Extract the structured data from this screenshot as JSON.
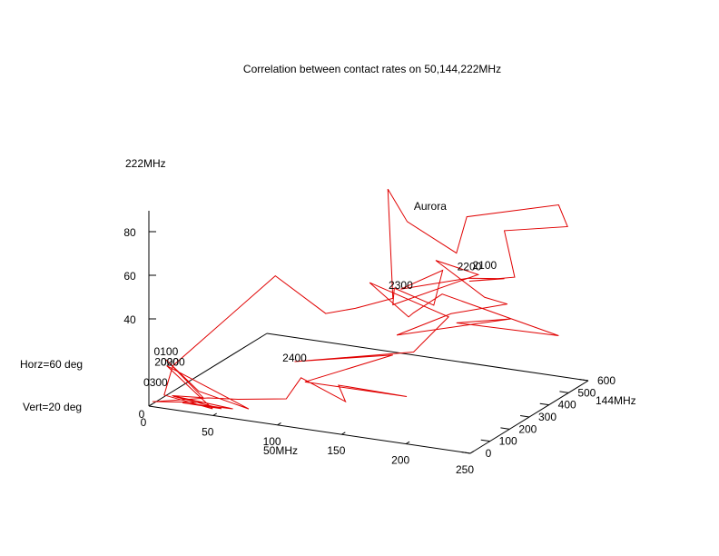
{
  "chart_data": {
    "type": "line",
    "title": "Correlation between contact rates on 50,144,222MHz",
    "xlabel": "50MHz",
    "ylabel": "144MHz",
    "zlabel": "222MHz",
    "xlim": [
      0,
      250
    ],
    "ylim": [
      0,
      600
    ],
    "zlim": [
      0,
      90
    ],
    "x_ticks": [
      "0",
      "50",
      "100",
      "150",
      "200",
      "250"
    ],
    "y_ticks": [
      "0",
      "100",
      "200",
      "300",
      "400",
      "500",
      "600"
    ],
    "z_ticks": [
      "40",
      "60",
      "80"
    ],
    "view": {
      "horizontal": "Horz=60 deg",
      "vertical": "Vert=20 deg"
    },
    "series_color": "#e00000",
    "annotations": [
      {
        "text": "Aurora",
        "x": 150,
        "y": 450,
        "z": 78
      },
      {
        "text": "2100",
        "x": 200,
        "y": 400,
        "z": 58
      },
      {
        "text": "2200",
        "x": 185,
        "y": 420,
        "z": 55
      },
      {
        "text": "2300",
        "x": 150,
        "y": 300,
        "z": 50
      },
      {
        "text": "2400",
        "x": 95,
        "y": 120,
        "z": 22
      },
      {
        "text": "0100",
        "x": 8,
        "y": 35,
        "z": 22
      },
      {
        "text": "2000",
        "x": 10,
        "y": 25,
        "z": 18
      },
      {
        "text": "0200",
        "x": 14,
        "y": 30,
        "z": 18
      },
      {
        "text": "0300",
        "x": 4,
        "y": 8,
        "z": 9
      }
    ],
    "series": [
      {
        "points": [
          [
            2,
            5,
            2
          ],
          [
            40,
            20,
            4
          ],
          [
            10,
            60,
            2
          ],
          [
            55,
            10,
            3
          ],
          [
            20,
            40,
            1
          ],
          [
            60,
            35,
            2
          ],
          [
            15,
            20,
            5
          ],
          [
            30,
            80,
            2
          ],
          [
            8,
            35,
            20
          ],
          [
            25,
            90,
            4
          ],
          [
            70,
            50,
            2
          ],
          [
            10,
            25,
            18
          ],
          [
            45,
            30,
            1
          ],
          [
            5,
            45,
            3
          ],
          [
            14,
            30,
            18
          ],
          [
            80,
            120,
            60
          ],
          [
            110,
            180,
            42
          ],
          [
            130,
            200,
            45
          ],
          [
            150,
            260,
            48
          ],
          [
            140,
            300,
            95
          ],
          [
            152,
            320,
            80
          ],
          [
            175,
            420,
            62
          ],
          [
            180,
            440,
            78
          ],
          [
            230,
            580,
            80
          ],
          [
            240,
            560,
            72
          ],
          [
            200,
            500,
            70
          ],
          [
            205,
            520,
            48
          ],
          [
            185,
            420,
            50
          ],
          [
            200,
            500,
            48
          ],
          [
            190,
            380,
            54
          ],
          [
            150,
            300,
            50
          ],
          [
            175,
            350,
            58
          ],
          [
            165,
            370,
            40
          ],
          [
            145,
            300,
            50
          ],
          [
            150,
            260,
            45
          ],
          [
            195,
            400,
            55
          ],
          [
            165,
            380,
            60
          ],
          [
            200,
            400,
            45
          ],
          [
            210,
            450,
            40
          ],
          [
            180,
            360,
            38
          ],
          [
            150,
            280,
            30
          ],
          [
            205,
            500,
            30
          ],
          [
            175,
            420,
            30
          ],
          [
            230,
            580,
            20
          ],
          [
            170,
            380,
            45
          ],
          [
            160,
            300,
            40
          ],
          [
            150,
            340,
            35
          ],
          [
            135,
            240,
            55
          ],
          [
            175,
            380,
            35
          ],
          [
            160,
            300,
            22
          ],
          [
            95,
            120,
            22
          ],
          [
            150,
            260,
            22
          ],
          [
            100,
            140,
            12
          ],
          [
            170,
            200,
            8
          ],
          [
            120,
            180,
            10
          ],
          [
            130,
            150,
            5
          ],
          [
            100,
            120,
            15
          ],
          [
            90,
            110,
            5
          ],
          [
            60,
            60,
            5
          ],
          [
            40,
            40,
            5
          ],
          [
            5,
            10,
            2
          ]
        ]
      }
    ]
  }
}
